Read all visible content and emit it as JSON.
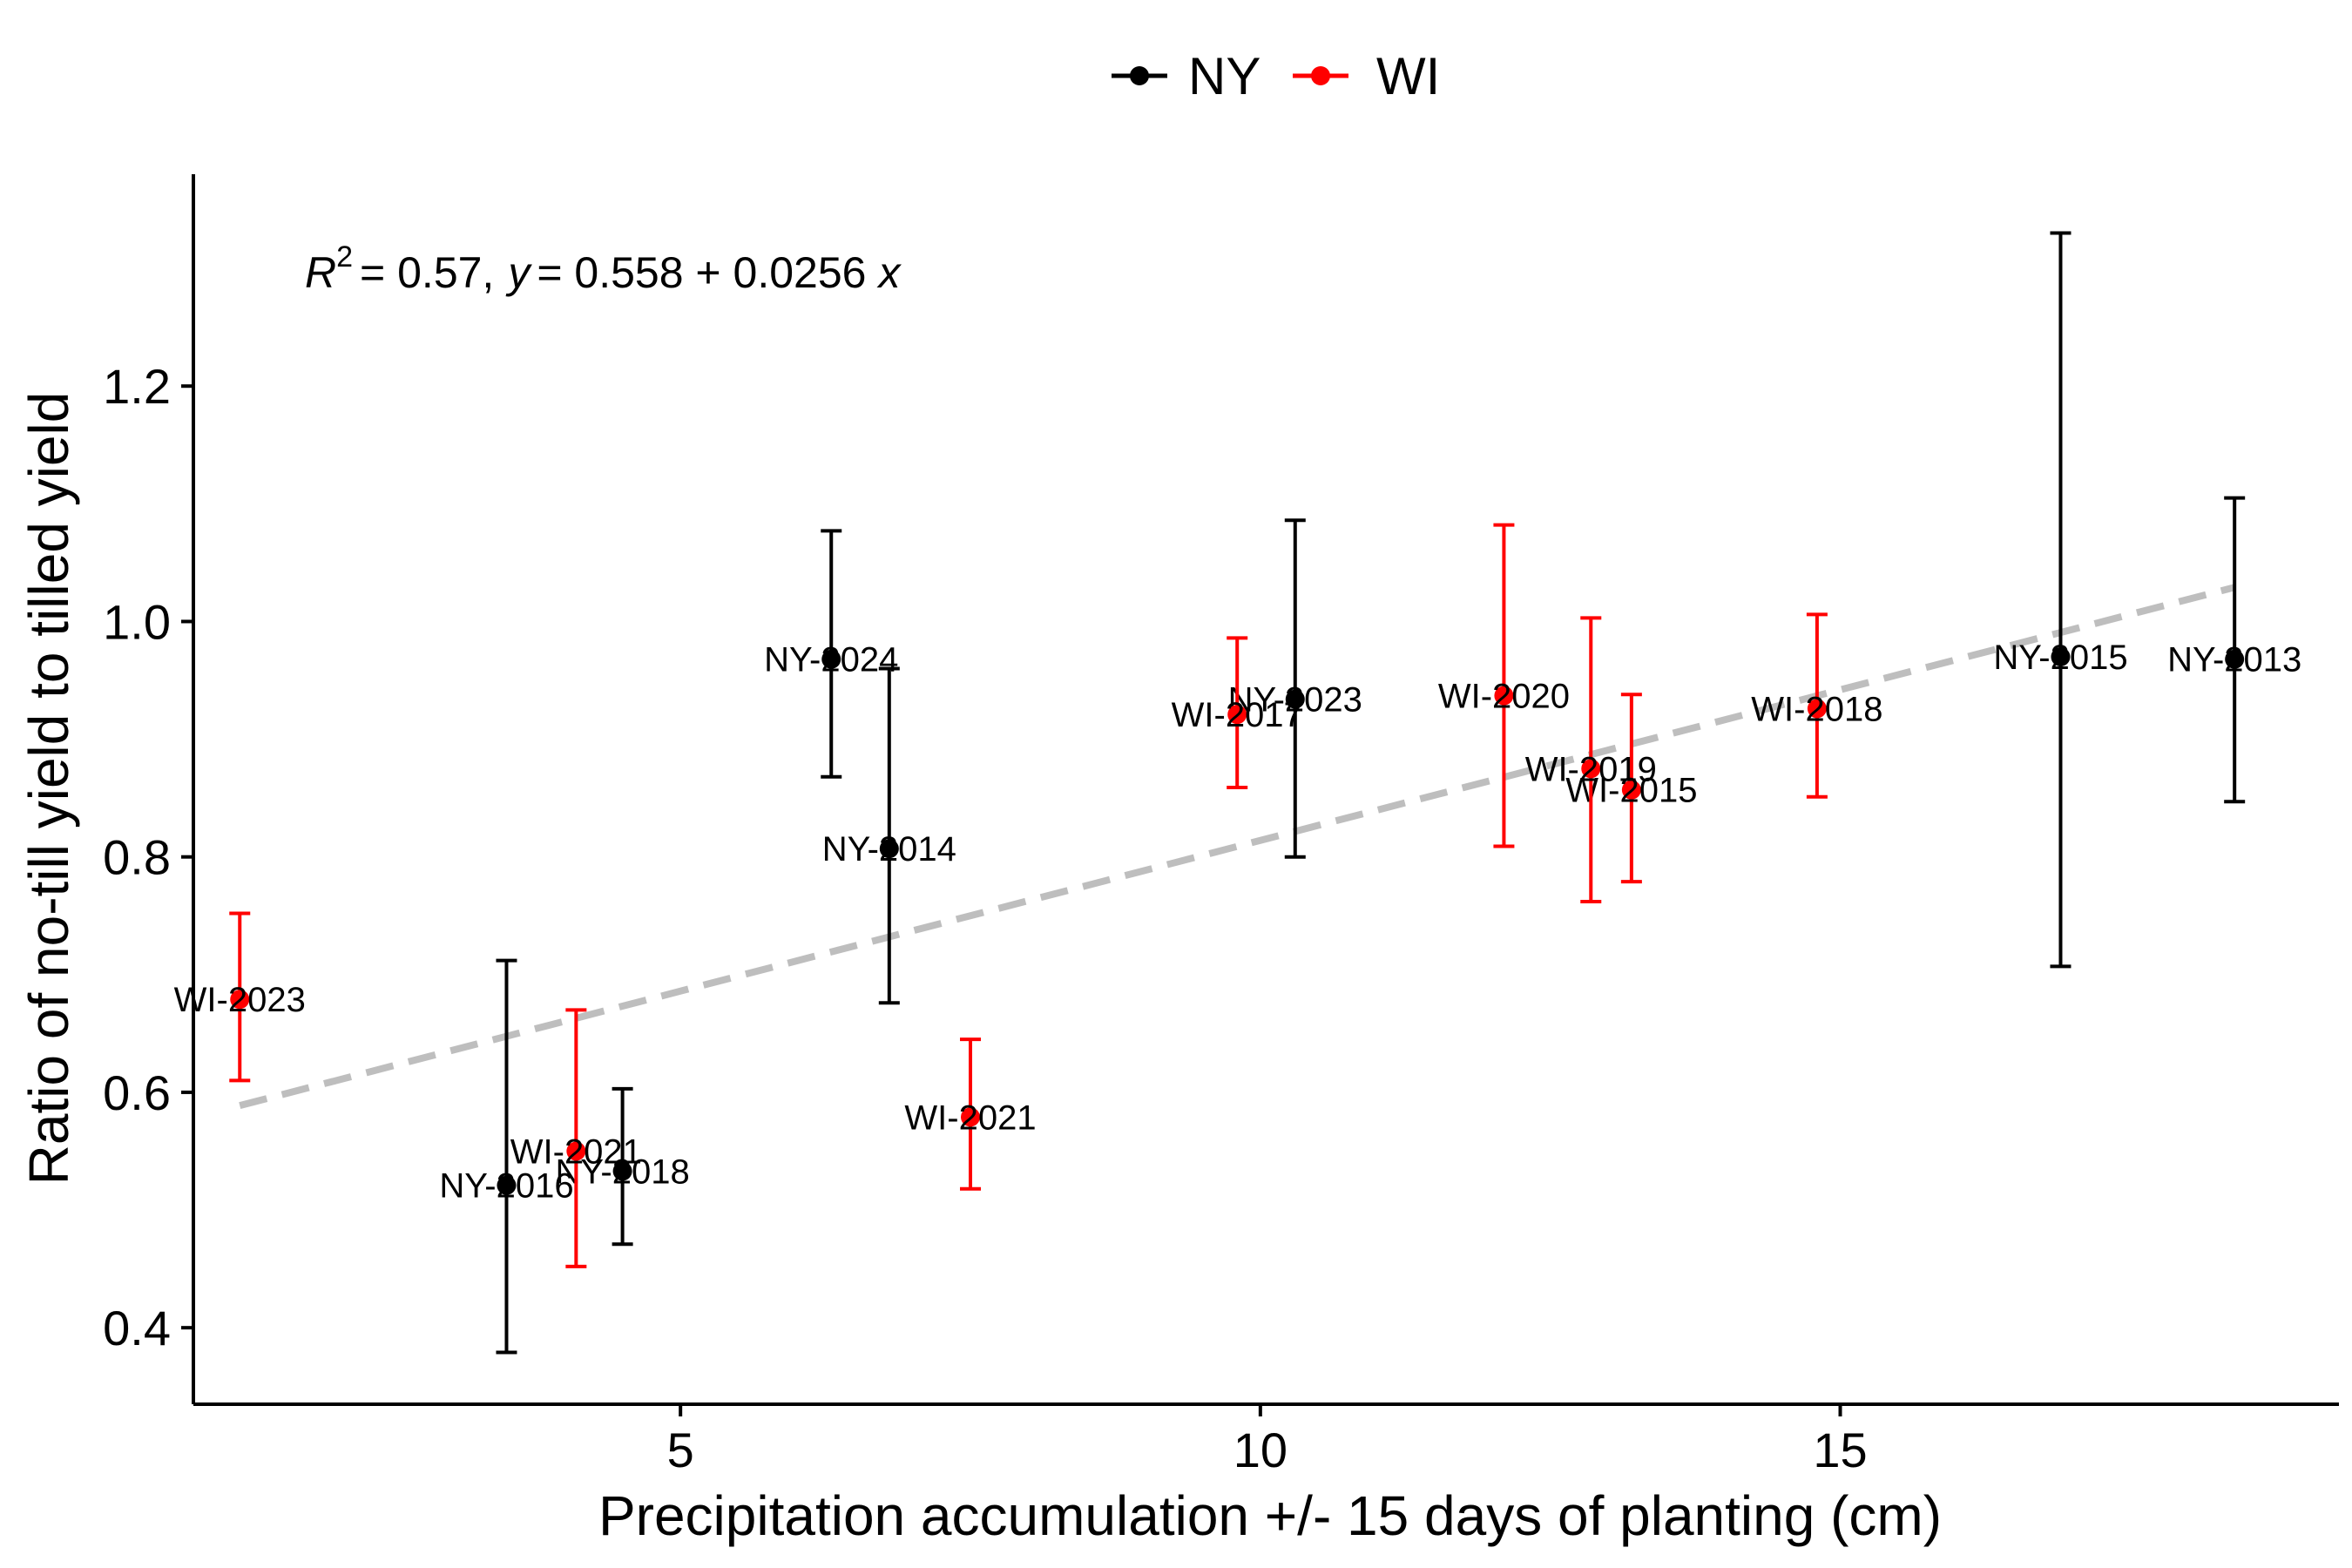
{
  "chart_data": {
    "type": "scatter",
    "xlabel": "Precipitation accumulation +/- 15 days of planting (cm)",
    "ylabel": "Ratio of no-till yield to tilled yield",
    "xlim": [
      0.8,
      19.3
    ],
    "ylim": [
      0.335,
      1.38
    ],
    "x_ticks": [
      5,
      10,
      15
    ],
    "x_tick_labels": [
      "5",
      "10",
      "15"
    ],
    "y_ticks": [
      0.4,
      0.6,
      0.8,
      1.0,
      1.2
    ],
    "y_tick_labels": [
      "0.4",
      "0.6",
      "0.8",
      "1.0",
      "1.2"
    ],
    "grid": false,
    "legend": {
      "placement": "top-center",
      "entries": [
        {
          "name": "NY",
          "color": "#000000"
        },
        {
          "name": "WI",
          "color": "#ff0000"
        }
      ]
    },
    "annotation": {
      "r2_symbol": "R",
      "r2_superscript": "2",
      "r2_value": "= 0.57,",
      "eq_y": "y",
      "eq_rhs": "= 0.558 + 0.0256",
      "eq_x": "x"
    },
    "trendline": {
      "intercept": 0.558,
      "slope": 0.0256,
      "x_range": [
        1.2,
        18.4
      ],
      "color": "#bebebe",
      "style": "dashed"
    },
    "series": [
      {
        "name": "NY",
        "color": "#000000",
        "points": [
          {
            "label": "NY-2013",
            "x": 18.4,
            "y": 0.968,
            "ymin": 0.847,
            "ymax": 1.105
          },
          {
            "label": "NY-2014",
            "x": 6.8,
            "y": 0.807,
            "ymin": 0.676,
            "ymax": 0.96
          },
          {
            "label": "NY-2015",
            "x": 16.9,
            "y": 0.97,
            "ymin": 0.707,
            "ymax": 1.33
          },
          {
            "label": "NY-2016",
            "x": 3.5,
            "y": 0.521,
            "ymin": 0.379,
            "ymax": 0.712
          },
          {
            "label": "NY-2018",
            "x": 4.5,
            "y": 0.533,
            "ymin": 0.471,
            "ymax": 0.603
          },
          {
            "label": "NY-2023",
            "x": 10.3,
            "y": 0.934,
            "ymin": 0.8,
            "ymax": 1.086
          },
          {
            "label": "NY-2024",
            "x": 6.3,
            "y": 0.968,
            "ymin": 0.868,
            "ymax": 1.077
          }
        ]
      },
      {
        "name": "WI",
        "color": "#ff0000",
        "points": [
          {
            "label": "WI-2015",
            "x": 13.2,
            "y": 0.857,
            "ymin": 0.779,
            "ymax": 0.938
          },
          {
            "label": "WI-2017",
            "x": 9.8,
            "y": 0.921,
            "ymin": 0.859,
            "ymax": 0.986
          },
          {
            "label": "WI-2018",
            "x": 14.8,
            "y": 0.926,
            "ymin": 0.851,
            "ymax": 1.006
          },
          {
            "label": "WI-2019",
            "x": 12.85,
            "y": 0.875,
            "ymin": 0.762,
            "ymax": 1.003
          },
          {
            "label": "WI-2020",
            "x": 12.1,
            "y": 0.937,
            "ymin": 0.809,
            "ymax": 1.082
          },
          {
            "label": "WI-2021",
            "x": 4.1,
            "y": 0.55,
            "ymin": 0.452,
            "ymax": 0.67
          },
          {
            "label": "WI-2021",
            "x": 7.5,
            "y": 0.579,
            "ymin": 0.518,
            "ymax": 0.645
          },
          {
            "label": "WI-2023",
            "x": 1.2,
            "y": 0.679,
            "ymin": 0.61,
            "ymax": 0.752
          }
        ]
      }
    ]
  }
}
